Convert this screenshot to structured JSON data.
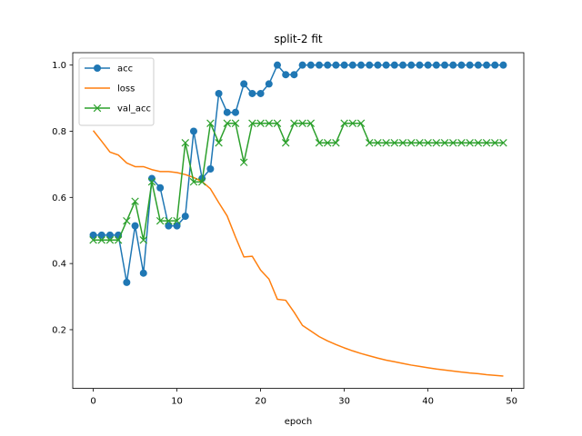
{
  "chart_data": {
    "type": "line",
    "title": "split-2 fit",
    "xlabel": "epoch",
    "ylabel": "",
    "xlim": [
      -2.45,
      51.45
    ],
    "ylim": [
      0.0225,
      1.0375
    ],
    "xticks": [
      0,
      10,
      20,
      30,
      40,
      50
    ],
    "yticks": [
      0.2,
      0.4,
      0.6,
      0.8,
      1.0
    ],
    "xtick_labels": [
      "0",
      "10",
      "20",
      "30",
      "40",
      "50"
    ],
    "ytick_labels": [
      "0.2",
      "0.4",
      "0.6",
      "0.8",
      "1.0"
    ],
    "grid": false,
    "legend_position": "top-left",
    "x": [
      0,
      1,
      2,
      3,
      4,
      5,
      6,
      7,
      8,
      9,
      10,
      11,
      12,
      13,
      14,
      15,
      16,
      17,
      18,
      19,
      20,
      21,
      22,
      23,
      24,
      25,
      26,
      27,
      28,
      29,
      30,
      31,
      32,
      33,
      34,
      35,
      36,
      37,
      38,
      39,
      40,
      41,
      42,
      43,
      44,
      45,
      46,
      47,
      48,
      49
    ],
    "series": [
      {
        "name": "acc",
        "color": "#1f77b4",
        "marker": "circle",
        "values": [
          0.486,
          0.486,
          0.486,
          0.486,
          0.343,
          0.514,
          0.371,
          0.657,
          0.629,
          0.514,
          0.514,
          0.543,
          0.8,
          0.657,
          0.686,
          0.914,
          0.857,
          0.857,
          0.943,
          0.914,
          0.914,
          0.943,
          1.0,
          0.971,
          0.971,
          1.0,
          1.0,
          1.0,
          1.0,
          1.0,
          1.0,
          1.0,
          1.0,
          1.0,
          1.0,
          1.0,
          1.0,
          1.0,
          1.0,
          1.0,
          1.0,
          1.0,
          1.0,
          1.0,
          1.0,
          1.0,
          1.0,
          1.0,
          1.0,
          1.0
        ]
      },
      {
        "name": "loss",
        "color": "#ff7f0e",
        "marker": "none",
        "values": [
          0.802,
          0.77,
          0.737,
          0.728,
          0.704,
          0.693,
          0.693,
          0.684,
          0.678,
          0.678,
          0.675,
          0.669,
          0.66,
          0.648,
          0.626,
          0.584,
          0.544,
          0.48,
          0.42,
          0.422,
          0.38,
          0.353,
          0.292,
          0.289,
          0.253,
          0.213,
          0.196,
          0.179,
          0.166,
          0.155,
          0.145,
          0.136,
          0.128,
          0.121,
          0.114,
          0.108,
          0.103,
          0.098,
          0.093,
          0.089,
          0.085,
          0.081,
          0.078,
          0.075,
          0.072,
          0.069,
          0.067,
          0.064,
          0.062,
          0.06
        ]
      },
      {
        "name": "val_acc",
        "color": "#2ca02c",
        "marker": "x",
        "values": [
          0.471,
          0.471,
          0.471,
          0.471,
          0.529,
          0.588,
          0.471,
          0.647,
          0.529,
          0.529,
          0.529,
          0.765,
          0.647,
          0.647,
          0.824,
          0.765,
          0.824,
          0.824,
          0.706,
          0.824,
          0.824,
          0.824,
          0.824,
          0.765,
          0.824,
          0.824,
          0.824,
          0.765,
          0.765,
          0.765,
          0.824,
          0.824,
          0.824,
          0.765,
          0.765,
          0.765,
          0.765,
          0.765,
          0.765,
          0.765,
          0.765,
          0.765,
          0.765,
          0.765,
          0.765,
          0.765,
          0.765,
          0.765,
          0.765,
          0.765
        ]
      }
    ]
  }
}
